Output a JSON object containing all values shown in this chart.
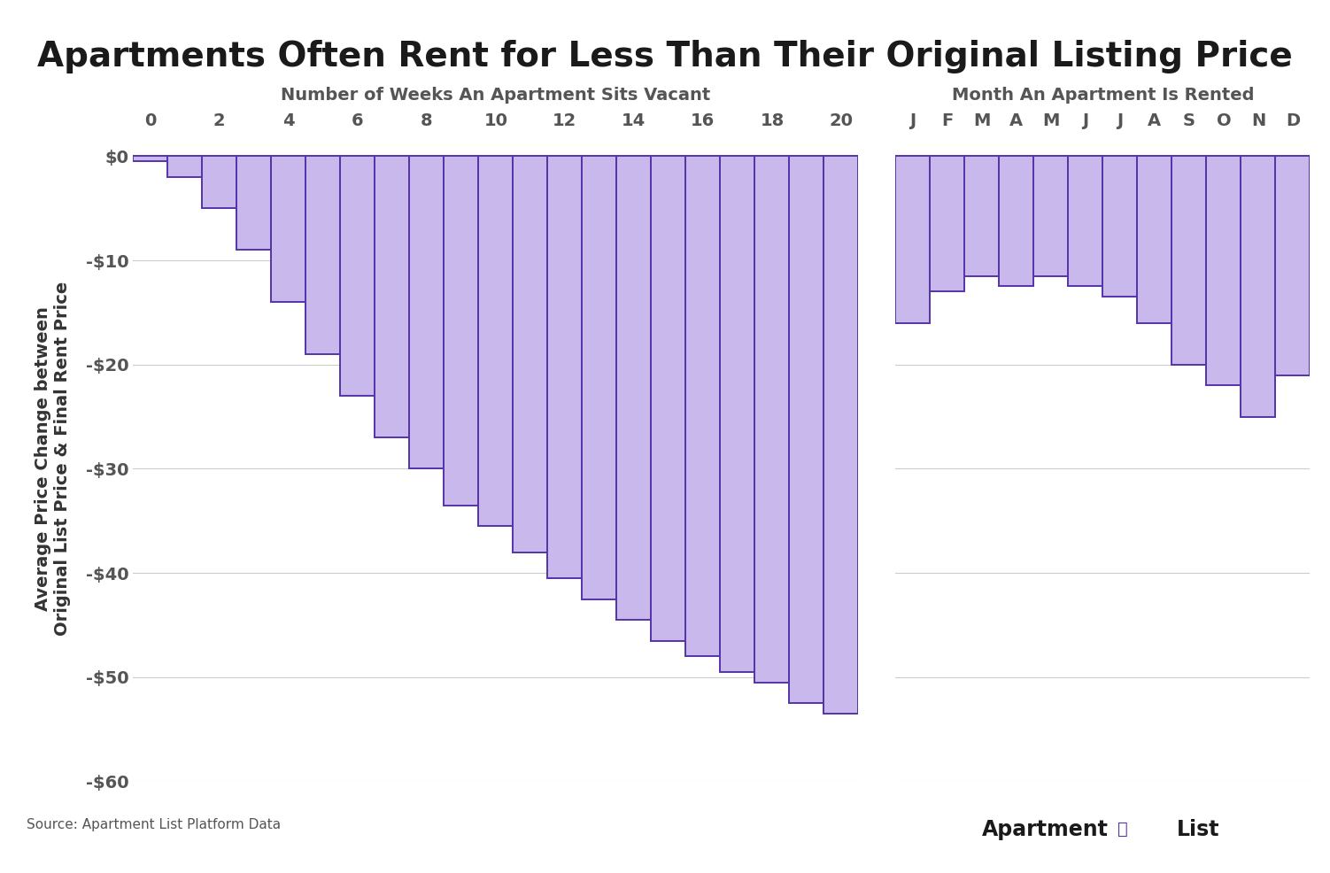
{
  "title": "Apartments Often Rent for Less Than Their Original Listing Price",
  "ylabel": "Average Price Change between\nOriginal List Price & Final Rent Price",
  "weeks_label": "Number of Weeks An Apartment Sits Vacant",
  "months_label": "Month An Apartment Is Rented",
  "source": "Source: Apartment List Platform Data",
  "weeks_x": [
    0,
    1,
    2,
    3,
    4,
    5,
    6,
    7,
    8,
    9,
    10,
    11,
    12,
    13,
    14,
    15,
    16,
    17,
    18,
    19,
    20
  ],
  "weeks_values": [
    -0.5,
    -2.0,
    -5.0,
    -9.0,
    -14.0,
    -19.0,
    -23.0,
    -27.0,
    -30.0,
    -33.5,
    -35.5,
    -38.0,
    -40.5,
    -42.5,
    -44.5,
    -46.5,
    -48.0,
    -49.5,
    -50.5,
    -52.5,
    -53.5
  ],
  "months_labels": [
    "J",
    "F",
    "M",
    "A",
    "M",
    "J",
    "J",
    "A",
    "S",
    "O",
    "N",
    "D"
  ],
  "months_values": [
    -16.0,
    -13.0,
    -11.5,
    -12.5,
    -11.5,
    -12.5,
    -13.5,
    -16.0,
    -20.0,
    -22.0,
    -25.0,
    -21.0
  ],
  "bar_fill_color": "#c8b8ec",
  "bar_edge_color": "#5533aa",
  "ylim": [
    -60,
    2
  ],
  "yticks": [
    0,
    -10,
    -20,
    -30,
    -40,
    -50,
    -60
  ],
  "ytick_labels": [
    "$0",
    "-$10",
    "-$20",
    "-$30",
    "-$40",
    "-$50",
    "-$60"
  ],
  "background_color": "#ffffff",
  "grid_color": "#cccccc",
  "title_fontsize": 28,
  "sublabel_fontsize": 14,
  "tick_fontsize": 14,
  "ylabel_fontsize": 14,
  "tick_color": "#555555",
  "label_color": "#555555"
}
